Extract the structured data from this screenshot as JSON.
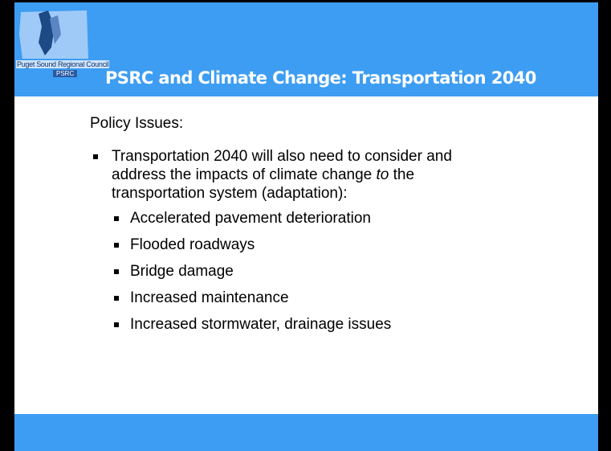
{
  "header": {
    "logo_text": "Puget Sound Regional Council",
    "logo_badge": "PSRC",
    "title": "PSRC and Climate Change: Transportation 2040"
  },
  "content": {
    "heading": "Policy Issues:",
    "bullets": [
      {
        "parts": [
          "Transportation 2040 will also need to consider and address the impacts of climate change ",
          "to",
          " the transportation system (adaptation):"
        ],
        "sub_bullets": [
          "Accelerated pavement deterioration",
          "Flooded roadways",
          "Bridge damage",
          "Increased maintenance",
          "Increased stormwater, drainage issues"
        ]
      }
    ]
  }
}
